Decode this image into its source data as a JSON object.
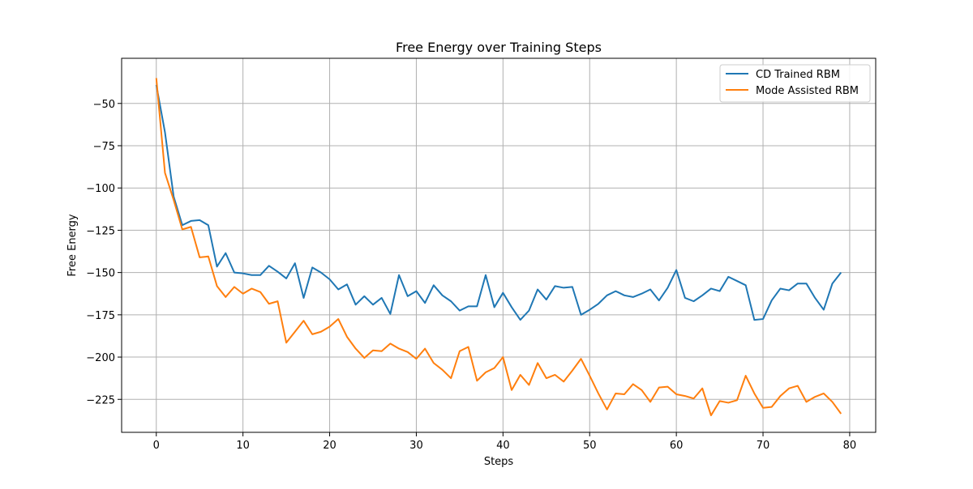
{
  "chart_data": {
    "type": "line",
    "title": "Free Energy over Training Steps",
    "xlabel": "Steps",
    "ylabel": "Free Energy",
    "xlim": [
      -4,
      83
    ],
    "ylim": [
      -244.5,
      -23.3
    ],
    "xticks": [
      0,
      10,
      20,
      30,
      40,
      50,
      60,
      70,
      80
    ],
    "yticks": [
      -50,
      -75,
      -100,
      -125,
      -150,
      -175,
      -200,
      -225
    ],
    "ytick_labels": [
      "−50",
      "−75",
      "−100",
      "−125",
      "−150",
      "−175",
      "−200",
      "−225"
    ],
    "grid": true,
    "legend_position": "top-right",
    "x": [
      0,
      1,
      2,
      3,
      4,
      5,
      6,
      7,
      8,
      9,
      10,
      11,
      12,
      13,
      14,
      15,
      16,
      17,
      18,
      19,
      20,
      21,
      22,
      23,
      24,
      25,
      26,
      27,
      28,
      29,
      30,
      31,
      32,
      33,
      34,
      35,
      36,
      37,
      38,
      39,
      40,
      41,
      42,
      43,
      44,
      45,
      46,
      47,
      48,
      49,
      50,
      51,
      52,
      53,
      54,
      55,
      56,
      57,
      58,
      59,
      60,
      61,
      62,
      63,
      64,
      65,
      66,
      67,
      68,
      69,
      70,
      71,
      72,
      73,
      74,
      75,
      76,
      77,
      78,
      79
    ],
    "series": [
      {
        "name": "CD Trained RBM",
        "color": "#1f77b4",
        "values": [
          -39,
          -67,
          -105,
          -122,
          -119.5,
          -119,
          -122,
          -146.5,
          -138.5,
          -150,
          -150.5,
          -151.5,
          -151.5,
          -146,
          -149.5,
          -153.5,
          -144.5,
          -165,
          -147,
          -150,
          -154,
          -160,
          -157,
          -169,
          -164,
          -169,
          -165,
          -174.5,
          -151.5,
          -164,
          -161,
          -168,
          -157.5,
          -163.5,
          -167,
          -172.5,
          -170,
          -170,
          -151.5,
          -170.5,
          -162,
          -170.5,
          -178,
          -172.5,
          -160,
          -166,
          -158,
          -159,
          -158.5,
          -175,
          -172,
          -168.5,
          -163.5,
          -161,
          -163.5,
          -164.5,
          -162.5,
          -160,
          -166.5,
          -159,
          -148.5,
          -165,
          -167,
          -163.5,
          -159.5,
          -161,
          -152.5,
          -155,
          -157.5,
          -178,
          -177.5,
          -166.5,
          -159.5,
          -160.5,
          -156.5,
          -156.5,
          -165,
          -172,
          -156.5,
          -150
        ]
      },
      {
        "name": "Mode Assisted RBM",
        "color": "#ff7f0e",
        "values": [
          -35,
          -91,
          -107,
          -124.5,
          -123,
          -141,
          -140.5,
          -158,
          -164.5,
          -158.5,
          -162.5,
          -159.5,
          -161.5,
          -168.5,
          -167,
          -191.5,
          -185,
          -178.5,
          -186.5,
          -185,
          -182,
          -177.5,
          -188,
          -195,
          -200.5,
          -196,
          -196.5,
          -192,
          -195,
          -197,
          -201,
          -195,
          -203.5,
          -207.5,
          -212.5,
          -196.5,
          -194,
          -214,
          -209,
          -206.5,
          -200,
          -219.5,
          -210.5,
          -216.5,
          -203.5,
          -212.5,
          -210.5,
          -214.5,
          -208,
          -201,
          -211,
          -221.5,
          -231,
          -221.5,
          -222,
          -216,
          -219.5,
          -226.5,
          -218,
          -217.5,
          -222,
          -223,
          -224.5,
          -218.5,
          -234.5,
          -226,
          -227,
          -225.5,
          -211,
          -221.5,
          -230,
          -229.5,
          -223,
          -218.5,
          -217,
          -226.5,
          -223.5,
          -221.5,
          -226.5,
          -233.5
        ]
      }
    ]
  }
}
